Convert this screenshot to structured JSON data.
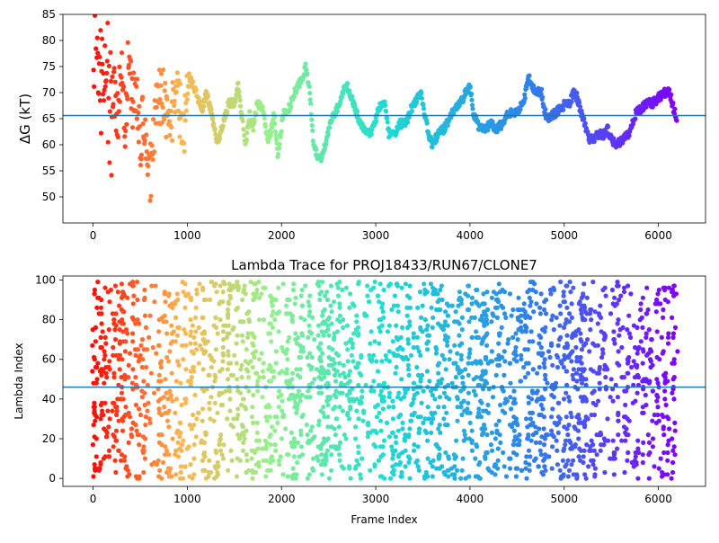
{
  "chart_data": [
    {
      "type": "scatter",
      "title": "",
      "xlabel": "",
      "ylabel": "ΔG (kT)",
      "xlim": [
        -320,
        6500
      ],
      "ylim": [
        45,
        85
      ],
      "x_ticks": [
        0,
        1000,
        2000,
        3000,
        4000,
        5000,
        6000
      ],
      "y_ticks": [
        50,
        55,
        60,
        65,
        70,
        75,
        80,
        85
      ],
      "hline": 65.6,
      "colormap": "rainbow",
      "x_max": 6200,
      "trace_points": [
        [
          0,
          84
        ],
        [
          30,
          80
        ],
        [
          60,
          76
        ],
        [
          100,
          70
        ],
        [
          140,
          78
        ],
        [
          180,
          64
        ],
        [
          220,
          72
        ],
        [
          260,
          66
        ],
        [
          300,
          74
        ],
        [
          340,
          62
        ],
        [
          380,
          78
        ],
        [
          420,
          68
        ],
        [
          460,
          70
        ],
        [
          500,
          60
        ],
        [
          540,
          66
        ],
        [
          580,
          52
        ],
        [
          620,
          56
        ],
        [
          660,
          64
        ],
        [
          700,
          70
        ],
        [
          760,
          68
        ],
        [
          820,
          62
        ],
        [
          880,
          72
        ],
        [
          920,
          66
        ],
        [
          980,
          64
        ],
        [
          1020,
          73
        ],
        [
          1100,
          70
        ],
        [
          1150,
          66
        ],
        [
          1200,
          70
        ],
        [
          1260,
          66
        ],
        [
          1320,
          60
        ],
        [
          1380,
          64
        ],
        [
          1440,
          68
        ],
        [
          1500,
          68
        ],
        [
          1540,
          72
        ],
        [
          1580,
          65
        ],
        [
          1620,
          60
        ],
        [
          1660,
          66
        ],
        [
          1700,
          63
        ],
        [
          1740,
          68
        ],
        [
          1800,
          67
        ],
        [
          1860,
          60
        ],
        [
          1920,
          66
        ],
        [
          1960,
          58
        ],
        [
          2020,
          66
        ],
        [
          2080,
          67
        ],
        [
          2140,
          70
        ],
        [
          2200,
          72
        ],
        [
          2260,
          75
        ],
        [
          2300,
          70
        ],
        [
          2340,
          60
        ],
        [
          2380,
          58
        ],
        [
          2420,
          57
        ],
        [
          2460,
          60
        ],
        [
          2500,
          63
        ],
        [
          2560,
          66
        ],
        [
          2620,
          68
        ],
        [
          2660,
          71
        ],
        [
          2700,
          71
        ],
        [
          2760,
          68
        ],
        [
          2820,
          65
        ],
        [
          2880,
          63
        ],
        [
          2940,
          62
        ],
        [
          3000,
          65
        ],
        [
          3060,
          68
        ],
        [
          3100,
          68
        ],
        [
          3140,
          62
        ],
        [
          3200,
          62
        ],
        [
          3260,
          64
        ],
        [
          3320,
          64
        ],
        [
          3380,
          67
        ],
        [
          3440,
          69
        ],
        [
          3480,
          70
        ],
        [
          3520,
          66
        ],
        [
          3560,
          62
        ],
        [
          3600,
          60
        ],
        [
          3660,
          62
        ],
        [
          3720,
          63
        ],
        [
          3780,
          65
        ],
        [
          3840,
          67
        ],
        [
          3900,
          68
        ],
        [
          3960,
          70
        ],
        [
          4000,
          71
        ],
        [
          4040,
          66
        ],
        [
          4100,
          63
        ],
        [
          4160,
          63
        ],
        [
          4220,
          64
        ],
        [
          4280,
          63
        ],
        [
          4340,
          64
        ],
        [
          4400,
          66
        ],
        [
          4460,
          66
        ],
        [
          4520,
          67
        ],
        [
          4580,
          69
        ],
        [
          4620,
          73
        ],
        [
          4660,
          71
        ],
        [
          4700,
          70
        ],
        [
          4760,
          70
        ],
        [
          4800,
          66
        ],
        [
          4840,
          65
        ],
        [
          4900,
          66
        ],
        [
          4960,
          67
        ],
        [
          5020,
          68
        ],
        [
          5060,
          68
        ],
        [
          5100,
          70
        ],
        [
          5140,
          69
        ],
        [
          5180,
          66
        ],
        [
          5220,
          64
        ],
        [
          5260,
          61
        ],
        [
          5300,
          61
        ],
        [
          5360,
          62
        ],
        [
          5420,
          62
        ],
        [
          5460,
          63
        ],
        [
          5500,
          61
        ],
        [
          5560,
          60
        ],
        [
          5620,
          61
        ],
        [
          5680,
          62
        ],
        [
          5720,
          64
        ],
        [
          5760,
          66
        ],
        [
          5820,
          67
        ],
        [
          5880,
          68
        ],
        [
          5940,
          68
        ],
        [
          6000,
          69
        ],
        [
          6060,
          70
        ],
        [
          6120,
          70
        ],
        [
          6160,
          67
        ],
        [
          6200,
          65
        ]
      ]
    },
    {
      "type": "scatter",
      "title": "Lambda Trace for PROJ18433/RUN67/CLONE7",
      "xlabel": "Frame Index",
      "ylabel": "Lambda Index",
      "xlim": [
        -320,
        6500
      ],
      "ylim": [
        -4,
        102
      ],
      "x_ticks": [
        0,
        1000,
        2000,
        3000,
        4000,
        5000,
        6000
      ],
      "y_ticks": [
        0,
        20,
        40,
        60,
        80,
        100
      ],
      "hline": 46,
      "colormap": "rainbow",
      "x_max": 6200
    }
  ]
}
